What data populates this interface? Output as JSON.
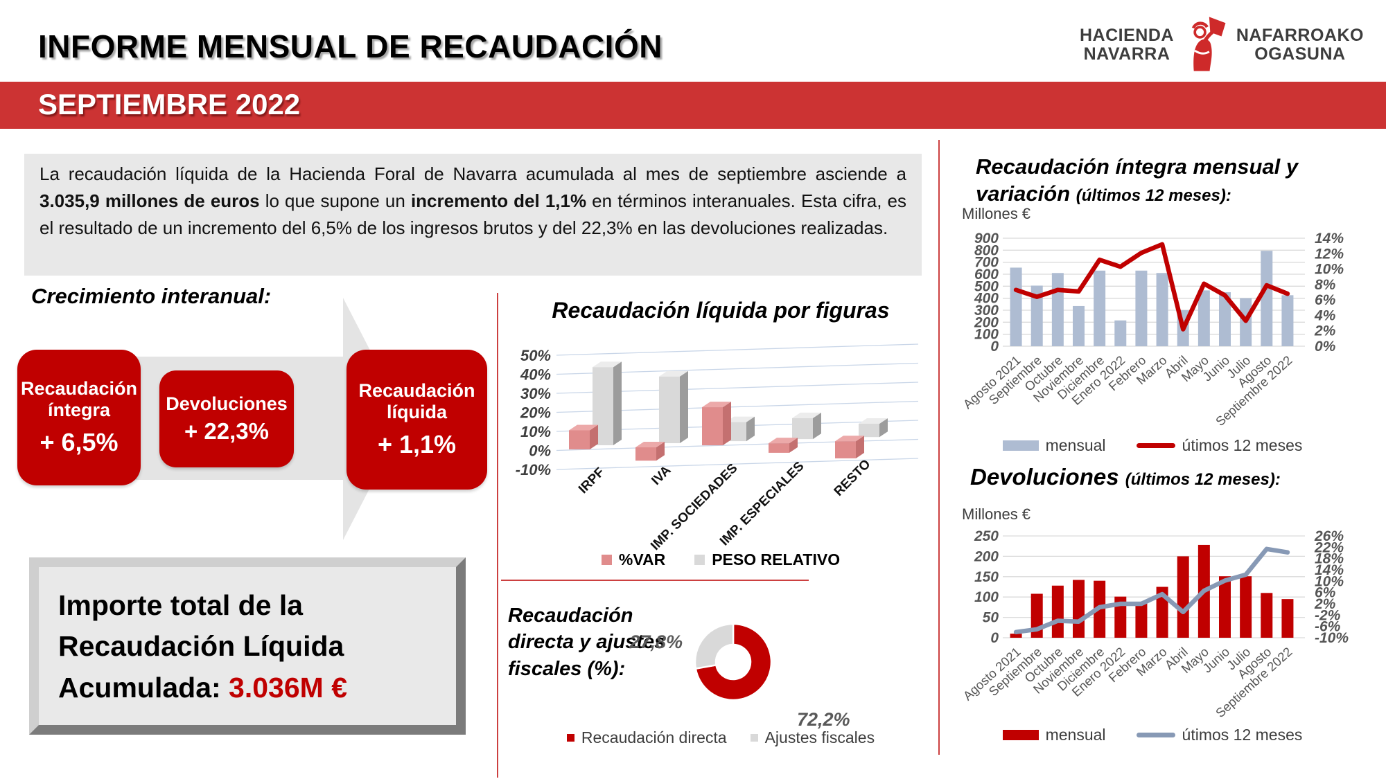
{
  "header": {
    "title": "INFORME MENSUAL DE RECAUDACIÓN",
    "period": "SEPTIEMBRE 2022",
    "logo": {
      "left_top": "HACIENDA",
      "left_bottom": "NAVARRA",
      "right_top": "NAFARROAKO",
      "right_bottom": "OGASUNA"
    }
  },
  "summary": {
    "part1": "La recaudación líquida de la Hacienda Foral de Navarra acumulada al mes de septiembre asciende a ",
    "bold1": "3.035,9 millones de euros",
    "part2": " lo que supone un ",
    "bold2": "incremento del 1,1%",
    "part3": " en términos interanuales. Esta cifra, es el resultado de un incremento del 6,5% de los ingresos brutos y del 22,3% en las devoluciones realizadas."
  },
  "growth": {
    "heading": "Crecimiento interanual:",
    "boxes": [
      {
        "label": "Recaudación íntegra",
        "value": "+ 6,5%"
      },
      {
        "label": "Devoluciones",
        "value": "+ 22,3%"
      },
      {
        "label": "Recaudación líquida",
        "value": "+ 1,1%"
      }
    ]
  },
  "total_box": {
    "black": "Importe total de la Recaudación Líquida Acumulada: ",
    "red": "3.036M €"
  },
  "colors": {
    "brand_red": "#C00000",
    "banner_red": "#CC3333",
    "bar_blue_gray": "#AEBCD2",
    "line_blue_gray": "#8799B5",
    "pink": "#E08C8C",
    "light_gray": "#D9D9D9"
  },
  "chart_data": [
    {
      "id": "figuras",
      "type": "bar",
      "style": "3d",
      "title": "Recaudación líquida por figuras",
      "categories": [
        "IRPF",
        "IVA",
        "IMP. SOCIEDADES",
        "IMP. ESPECIALES",
        "RESTO"
      ],
      "series": [
        {
          "name": "%VAR",
          "color": "#E08C8C",
          "values": [
            10,
            -7,
            20,
            -5,
            -9
          ]
        },
        {
          "name": "PESO RELATIVO",
          "color": "#D9D9D9",
          "values": [
            41,
            35,
            10,
            11,
            7
          ]
        }
      ],
      "ylim": [
        -10,
        50
      ],
      "yticks": [
        "50%",
        "40%",
        "30%",
        "20%",
        "10%",
        "0%",
        "-10%"
      ],
      "legend_position": "bottom"
    },
    {
      "id": "integra",
      "type": "combo-bar-line",
      "title": "Recaudación íntegra mensual y variación",
      "title_sub": "(últimos 12 meses):",
      "units_label": "Millones €",
      "categories": [
        "Agosto 2021",
        "Septiembre",
        "Octubre",
        "Noviembre",
        "Diciembre",
        "Enero 2022",
        "Febrero",
        "Marzo",
        "Abril",
        "Mayo",
        "Junio",
        "Julio",
        "Agosto",
        "Septiembre 2022"
      ],
      "bars": {
        "name": "mensual",
        "color": "#AEBCD2",
        "values": [
          655,
          505,
          610,
          335,
          630,
          215,
          630,
          610,
          300,
          465,
          450,
          400,
          795,
          425
        ]
      },
      "line": {
        "name": "útimos 12 meses",
        "color": "#C00000",
        "values": [
          7.3,
          6.4,
          7.3,
          7.1,
          11.2,
          10.3,
          12.1,
          13.2,
          2.2,
          8.1,
          6.6,
          3.3,
          7.9,
          6.8
        ]
      },
      "left_axis": {
        "min": 0,
        "max": 900,
        "ticks": [
          "900",
          "800",
          "700",
          "600",
          "500",
          "400",
          "300",
          "200",
          "100",
          "0"
        ]
      },
      "right_axis": {
        "min": 0,
        "max": 14,
        "ticks": [
          "14%",
          "12%",
          "10%",
          "8%",
          "6%",
          "4%",
          "2%",
          "0%"
        ]
      },
      "legend_position": "bottom"
    },
    {
      "id": "devoluciones",
      "type": "combo-bar-line",
      "title": "Devoluciones",
      "title_sub": "(últimos 12 meses):",
      "units_label": "Millones €",
      "categories": [
        "Agosto 2021",
        "Septiembre",
        "Octubre",
        "Noviembre",
        "Diciembre",
        "Enero 2022",
        "Febrero",
        "Marzo",
        "Abril",
        "Mayo",
        "Junio",
        "Julio",
        "Agosto",
        "Septiembre 2022"
      ],
      "bars": {
        "name": "mensual",
        "color": "#C00000",
        "values": [
          10,
          108,
          128,
          142,
          140,
          101,
          87,
          125,
          200,
          228,
          151,
          151,
          110,
          95
        ]
      },
      "line": {
        "name": "útimos 12 meses",
        "color": "#8799B5",
        "values": [
          -8,
          -7,
          -4,
          -4.3,
          0.8,
          2,
          2,
          5.4,
          -0.9,
          6.6,
          10.2,
          12.3,
          21.4,
          20.2
        ]
      },
      "left_axis": {
        "min": 0,
        "max": 250,
        "ticks": [
          "250",
          "200",
          "150",
          "100",
          "50",
          "0"
        ]
      },
      "right_axis": {
        "min": -10,
        "max": 26,
        "ticks": [
          "26%",
          "22%",
          "18%",
          "14%",
          "10%",
          "6%",
          "2%",
          "-2%",
          "-6%",
          "-10%"
        ]
      },
      "legend_position": "bottom"
    },
    {
      "id": "directa_ajustes",
      "type": "pie",
      "title": "Recaudación directa y ajustes fiscales (%):",
      "slices": [
        {
          "label": "Recaudación directa",
          "value": 72.2,
          "display": "72,2%",
          "color": "#C00000"
        },
        {
          "label": "Ajustes fiscales",
          "value": 27.8,
          "display": "27,8%",
          "color": "#D9D9D9"
        }
      ],
      "legend_position": "bottom"
    }
  ]
}
